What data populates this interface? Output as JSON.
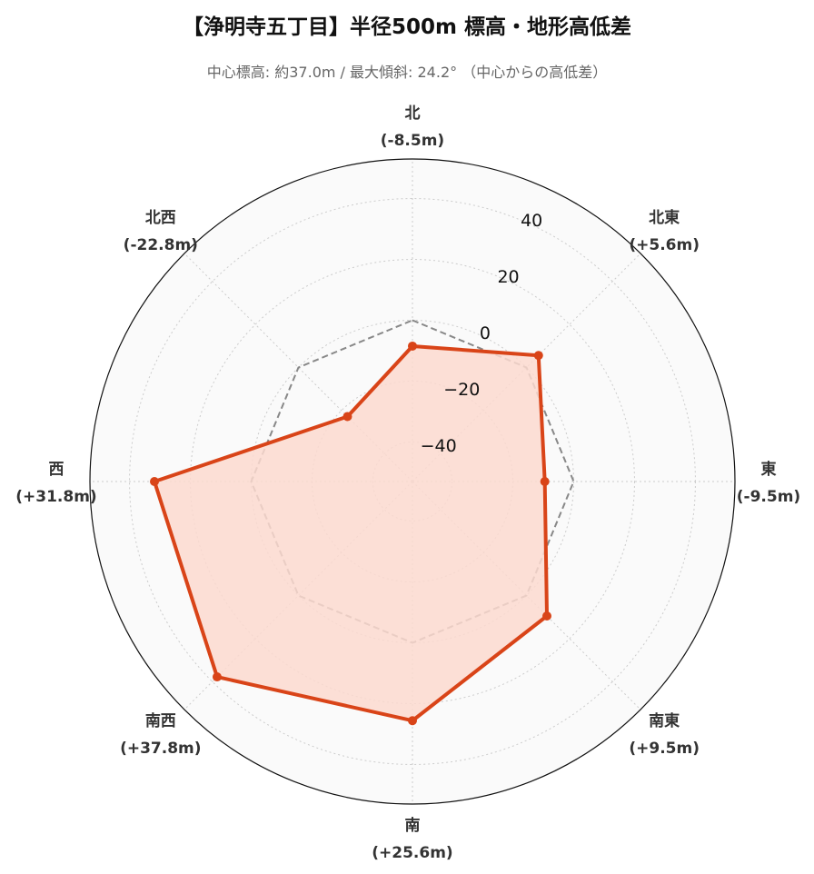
{
  "chart_data": {
    "type": "radar",
    "title": "【浄明寺五丁目】半径500m 標高・地形高低差",
    "subtitle": "中心標高: 約37.0m / 最大傾斜: 24.2° （中心からの高低差）",
    "categories": [
      "北",
      "北東",
      "東",
      "南東",
      "南",
      "南西",
      "西",
      "北西"
    ],
    "value_labels": [
      "(-8.5m)",
      "(+5.6m)",
      "(-9.5m)",
      "(+9.5m)",
      "(+25.6m)",
      "(+37.8m)",
      "(+31.8m)",
      "(-22.8m)"
    ],
    "series": [
      {
        "values": [
          -8.5,
          5.6,
          -9.5,
          9.5,
          25.6,
          37.8,
          31.8,
          -22.8
        ],
        "color": "#d94418",
        "fill": "#fcd9cf"
      }
    ],
    "reference_line": {
      "value": 0,
      "style": "dashed",
      "color": "#888888"
    },
    "r_range": [
      -53,
      53
    ],
    "r_ticks": [
      -40,
      -20,
      0,
      20,
      40
    ],
    "r_tick_labels": [
      "−40",
      "−20",
      "0",
      "20",
      "40"
    ],
    "grid": true,
    "background": "#fafafa"
  }
}
